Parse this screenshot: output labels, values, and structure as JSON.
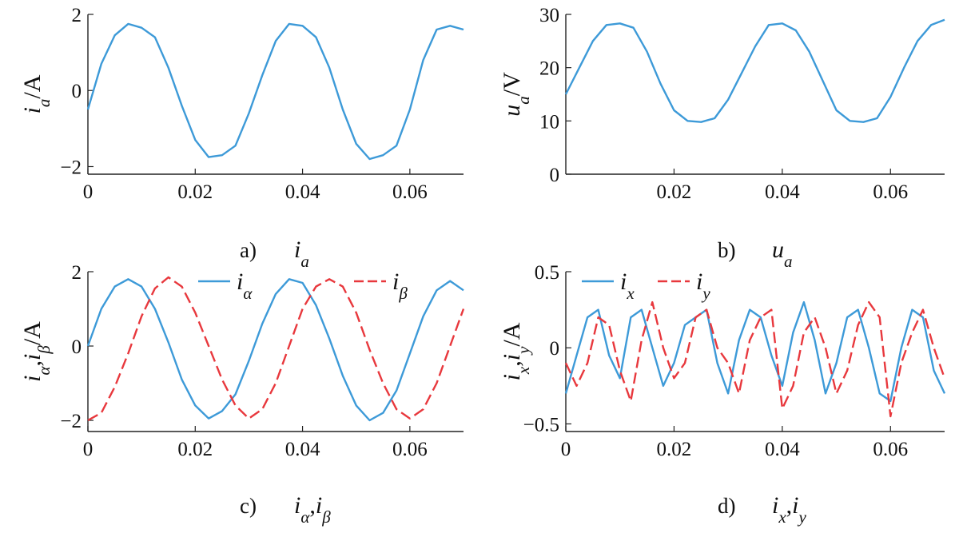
{
  "chart_data": [
    {
      "id": "a",
      "type": "line",
      "caption_letter": "a)",
      "caption_sym": "i",
      "caption_sub": "a",
      "ylabel_sym": "i",
      "ylabel_sub": "a",
      "ylabel_unit": "/A",
      "xlim": [
        0,
        0.07
      ],
      "ylim": [
        -2.2,
        2
      ],
      "x_ticks": [
        "0",
        "0.02",
        "0.04",
        "0.06"
      ],
      "x_tick_values": [
        0,
        0.02,
        0.04,
        0.06
      ],
      "y_ticks": [
        "−2",
        "0",
        "2"
      ],
      "y_tick_values": [
        -2,
        0,
        2
      ],
      "series": [
        {
          "color": "#3d9ad8",
          "dash": false,
          "x": [
            0,
            0.0025,
            0.005,
            0.0075,
            0.01,
            0.0125,
            0.015,
            0.0175,
            0.02,
            0.0225,
            0.025,
            0.0275,
            0.03,
            0.0325,
            0.035,
            0.0375,
            0.04,
            0.0425,
            0.045,
            0.0475,
            0.05,
            0.0525,
            0.055,
            0.0575,
            0.06,
            0.0625,
            0.065,
            0.0675,
            0.07
          ],
          "y": [
            -0.5,
            0.7,
            1.45,
            1.75,
            1.65,
            1.4,
            0.6,
            -0.4,
            -1.3,
            -1.75,
            -1.7,
            -1.45,
            -0.6,
            0.4,
            1.3,
            1.75,
            1.7,
            1.4,
            0.6,
            -0.5,
            -1.4,
            -1.8,
            -1.7,
            -1.45,
            -0.5,
            0.8,
            1.6,
            1.7,
            1.6
          ]
        }
      ]
    },
    {
      "id": "b",
      "type": "line",
      "caption_letter": "b)",
      "caption_sym": "u",
      "caption_sub": "a",
      "ylabel_sym": "u",
      "ylabel_sub": "a",
      "ylabel_unit": "/V",
      "xlim": [
        0,
        0.07
      ],
      "ylim": [
        0,
        30
      ],
      "x_ticks": [
        "0.02",
        "0.04",
        "0.06"
      ],
      "x_tick_values": [
        0.02,
        0.04,
        0.06
      ],
      "y_ticks": [
        "0",
        "10",
        "20",
        "30"
      ],
      "y_tick_values": [
        0,
        10,
        20,
        30
      ],
      "series": [
        {
          "color": "#3d9ad8",
          "dash": false,
          "x": [
            0,
            0.0025,
            0.005,
            0.0075,
            0.01,
            0.0125,
            0.015,
            0.0175,
            0.02,
            0.0225,
            0.025,
            0.0275,
            0.03,
            0.0325,
            0.035,
            0.0375,
            0.04,
            0.0425,
            0.045,
            0.0475,
            0.05,
            0.0525,
            0.055,
            0.0575,
            0.06,
            0.0625,
            0.065,
            0.0675,
            0.07
          ],
          "y": [
            15,
            20,
            25,
            28,
            28.3,
            27.5,
            23,
            17,
            12,
            10,
            9.8,
            10.5,
            14,
            19,
            24,
            28,
            28.3,
            27,
            23,
            17.5,
            12,
            10,
            9.8,
            10.5,
            14.5,
            20,
            25,
            28,
            29
          ]
        }
      ]
    },
    {
      "id": "c",
      "type": "line",
      "caption_letter": "c)",
      "caption_sym": "i",
      "caption_sub": "α",
      "caption_sym2": "i",
      "caption_sub2": "β",
      "ylabel_sym": "i",
      "ylabel_sub": "α",
      "ylabel_sym2": "i",
      "ylabel_sub2": "β",
      "ylabel_unit": "/A",
      "xlim": [
        0,
        0.07
      ],
      "ylim": [
        -2.3,
        2
      ],
      "x_ticks": [
        "0",
        "0.02",
        "0.04",
        "0.06"
      ],
      "x_tick_values": [
        0,
        0.02,
        0.04,
        0.06
      ],
      "y_ticks": [
        "−2",
        "0",
        "2"
      ],
      "y_tick_values": [
        -2,
        0,
        2
      ],
      "legend": [
        {
          "sym": "i",
          "sub": "α",
          "color": "#3d9ad8",
          "dash": false
        },
        {
          "sym": "i",
          "sub": "β",
          "color": "#e8383d",
          "dash": true
        }
      ],
      "series": [
        {
          "color": "#3d9ad8",
          "dash": false,
          "x": [
            0,
            0.0025,
            0.005,
            0.0075,
            0.01,
            0.0125,
            0.015,
            0.0175,
            0.02,
            0.0225,
            0.025,
            0.0275,
            0.03,
            0.0325,
            0.035,
            0.0375,
            0.04,
            0.0425,
            0.045,
            0.0475,
            0.05,
            0.0525,
            0.055,
            0.0575,
            0.06,
            0.0625,
            0.065,
            0.0675,
            0.07
          ],
          "y": [
            0,
            1.0,
            1.6,
            1.8,
            1.6,
            1.0,
            0.1,
            -0.9,
            -1.6,
            -1.95,
            -1.75,
            -1.3,
            -0.4,
            0.6,
            1.4,
            1.8,
            1.7,
            1.1,
            0.2,
            -0.8,
            -1.6,
            -2.0,
            -1.8,
            -1.2,
            -0.2,
            0.8,
            1.5,
            1.75,
            1.5
          ]
        },
        {
          "color": "#e8383d",
          "dash": true,
          "x": [
            0,
            0.0025,
            0.005,
            0.0075,
            0.01,
            0.0125,
            0.015,
            0.0175,
            0.02,
            0.0225,
            0.025,
            0.0275,
            0.03,
            0.0325,
            0.035,
            0.0375,
            0.04,
            0.0425,
            0.045,
            0.0475,
            0.05,
            0.0525,
            0.055,
            0.0575,
            0.06,
            0.0625,
            0.065,
            0.0675,
            0.07
          ],
          "y": [
            -2.0,
            -1.8,
            -1.1,
            -0.2,
            0.8,
            1.55,
            1.85,
            1.6,
            0.9,
            0.0,
            -0.9,
            -1.6,
            -1.95,
            -1.7,
            -1.0,
            0.0,
            1.0,
            1.6,
            1.8,
            1.6,
            0.9,
            -0.1,
            -1.0,
            -1.7,
            -1.95,
            -1.7,
            -1.0,
            0.0,
            1.0
          ]
        }
      ]
    },
    {
      "id": "d",
      "type": "line",
      "caption_letter": "d)",
      "caption_sym": "i",
      "caption_sub": "x",
      "caption_sym2": "i",
      "caption_sub2": "y",
      "ylabel_sym": "i",
      "ylabel_sub": "x",
      "ylabel_sym2": "i",
      "ylabel_sub2": "y",
      "ylabel_unit": "/A",
      "xlim": [
        0,
        0.07
      ],
      "ylim": [
        -0.55,
        0.5
      ],
      "x_ticks": [
        "0",
        "0.02",
        "0.04",
        "0.06"
      ],
      "x_tick_values": [
        0,
        0.02,
        0.04,
        0.06
      ],
      "y_ticks": [
        "−0.5",
        "0",
        "0.5"
      ],
      "y_tick_values": [
        -0.5,
        0,
        0.5
      ],
      "legend": [
        {
          "sym": "i",
          "sub": "x",
          "color": "#3d9ad8",
          "dash": false
        },
        {
          "sym": "i",
          "sub": "y",
          "color": "#e8383d",
          "dash": true
        }
      ],
      "series": [
        {
          "color": "#3d9ad8",
          "dash": false,
          "x": [
            0,
            0.002,
            0.004,
            0.006,
            0.008,
            0.01,
            0.012,
            0.014,
            0.016,
            0.018,
            0.02,
            0.022,
            0.024,
            0.026,
            0.028,
            0.03,
            0.032,
            0.034,
            0.036,
            0.038,
            0.04,
            0.042,
            0.044,
            0.046,
            0.048,
            0.05,
            0.052,
            0.054,
            0.056,
            0.058,
            0.06,
            0.062,
            0.064,
            0.066,
            0.068,
            0.07
          ],
          "y": [
            -0.3,
            -0.05,
            0.2,
            0.25,
            -0.05,
            -0.2,
            0.2,
            0.25,
            0.0,
            -0.25,
            -0.1,
            0.15,
            0.2,
            0.25,
            -0.1,
            -0.3,
            0.05,
            0.25,
            0.2,
            -0.05,
            -0.25,
            0.1,
            0.3,
            0.05,
            -0.3,
            -0.1,
            0.2,
            0.25,
            0.0,
            -0.3,
            -0.35,
            0.0,
            0.25,
            0.2,
            -0.15,
            -0.3
          ]
        },
        {
          "color": "#e8383d",
          "dash": true,
          "x": [
            0,
            0.002,
            0.004,
            0.006,
            0.008,
            0.01,
            0.012,
            0.014,
            0.016,
            0.018,
            0.02,
            0.022,
            0.024,
            0.026,
            0.028,
            0.03,
            0.032,
            0.034,
            0.036,
            0.038,
            0.04,
            0.042,
            0.044,
            0.046,
            0.048,
            0.05,
            0.052,
            0.054,
            0.056,
            0.058,
            0.06,
            0.062,
            0.064,
            0.066,
            0.068,
            0.07
          ],
          "y": [
            -0.1,
            -0.25,
            -0.1,
            0.2,
            0.15,
            -0.15,
            -0.35,
            0.05,
            0.3,
            0.0,
            -0.2,
            -0.1,
            0.2,
            0.25,
            0.0,
            -0.1,
            -0.3,
            0.05,
            0.2,
            0.25,
            -0.4,
            -0.25,
            0.1,
            0.2,
            0.0,
            -0.3,
            -0.15,
            0.15,
            0.3,
            0.2,
            -0.45,
            -0.1,
            0.1,
            0.25,
            0.0,
            -0.2
          ]
        }
      ]
    }
  ]
}
